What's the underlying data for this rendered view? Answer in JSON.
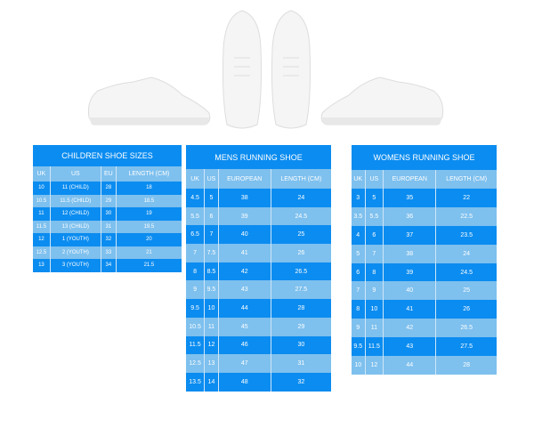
{
  "colors": {
    "dark_row": "#0b8cf0",
    "light_row": "#7ec0ee"
  },
  "children": {
    "title": "CHILDREN SHOE SIZES",
    "headers": [
      "UK",
      "US",
      "EU",
      "LENGTH (CM)"
    ],
    "rows": [
      [
        "10",
        "11 (CHILD)",
        "28",
        "18"
      ],
      [
        "10.5",
        "11.5 (CHILD)",
        "29",
        "18.5"
      ],
      [
        "11",
        "12 (CHILD)",
        "30",
        "19"
      ],
      [
        "11.5",
        "13 (CHILD)",
        "31",
        "19.5"
      ],
      [
        "12",
        "1 (YOUTH)",
        "32",
        "20"
      ],
      [
        "12.5",
        "2 (YOUTH)",
        "33",
        "21"
      ],
      [
        "13",
        "3 (YOUTH)",
        "34",
        "21.5"
      ]
    ]
  },
  "mens": {
    "title": "MENS RUNNING SHOE",
    "headers": [
      "UK",
      "US",
      "EUROPEAN",
      "LENGTH (CM)"
    ],
    "rows": [
      [
        "4.5",
        "5",
        "38",
        "24"
      ],
      [
        "5.5",
        "6",
        "39",
        "24.5"
      ],
      [
        "6.5",
        "7",
        "40",
        "25"
      ],
      [
        "7",
        "7.5",
        "41",
        "26"
      ],
      [
        "8",
        "8.5",
        "42",
        "26.5"
      ],
      [
        "9",
        "9.5",
        "43",
        "27.5"
      ],
      [
        "9.5",
        "10",
        "44",
        "28"
      ],
      [
        "10.5",
        "11",
        "45",
        "29"
      ],
      [
        "11.5",
        "12",
        "46",
        "30"
      ],
      [
        "12.5",
        "13",
        "47",
        "31"
      ],
      [
        "13.5",
        "14",
        "48",
        "32"
      ]
    ]
  },
  "womens": {
    "title": "WOMENS RUNNING SHOE",
    "headers": [
      "UK",
      "US",
      "EUROPEAN",
      "LENGTH (CM)"
    ],
    "rows": [
      [
        "3",
        "5",
        "35",
        "22"
      ],
      [
        "3.5",
        "5.5",
        "36",
        "22.5"
      ],
      [
        "4",
        "6",
        "37",
        "23.5"
      ],
      [
        "5",
        "7",
        "38",
        "24"
      ],
      [
        "6",
        "8",
        "39",
        "24.5"
      ],
      [
        "7",
        "9",
        "40",
        "25"
      ],
      [
        "8",
        "10",
        "41",
        "26"
      ],
      [
        "9",
        "11",
        "42",
        "26.5"
      ],
      [
        "9.5",
        "11.5",
        "43",
        "27.5"
      ],
      [
        "10",
        "12",
        "44",
        "28"
      ]
    ]
  }
}
